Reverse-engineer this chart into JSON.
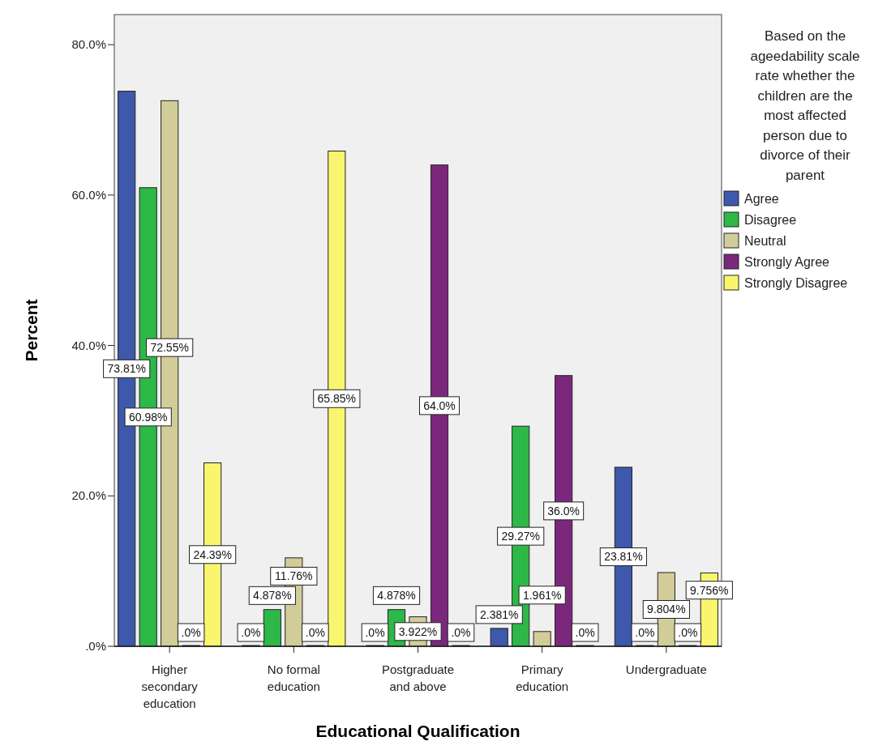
{
  "chart_data": {
    "type": "bar",
    "xlabel": "Educational Qualification",
    "ylabel": "Percent",
    "legend_title": "Based on the ageedability scale rate whether the children are the most affected person due to divorce of their parent",
    "legend": "right",
    "categories": [
      "Higher secondary education",
      "No formal education",
      "Postgraduate and above",
      "Primary education",
      "Undergraduate"
    ],
    "ylim": [
      0,
      84
    ],
    "yticks": [
      {
        "value": 0,
        "label": ".0%"
      },
      {
        "value": 20,
        "label": "20.0%"
      },
      {
        "value": 40,
        "label": "40.0%"
      },
      {
        "value": 60,
        "label": "60.0%"
      },
      {
        "value": 80,
        "label": "80.0%"
      }
    ],
    "grid": false,
    "series": [
      {
        "name": "Agree",
        "color": "#3e58ac",
        "values": [
          73.81,
          0,
          0,
          2.381,
          23.81
        ],
        "value_labels": [
          "73.81%",
          ".0%",
          ".0%",
          "2.381%",
          "23.81%"
        ]
      },
      {
        "name": "Disagree",
        "color": "#2eb848",
        "values": [
          60.98,
          4.878,
          4.878,
          29.27,
          0
        ],
        "value_labels": [
          "60.98%",
          "4.878%",
          "4.878%",
          "29.27%",
          ".0%"
        ]
      },
      {
        "name": "Neutral",
        "color": "#d2cc98",
        "values": [
          72.55,
          11.76,
          3.922,
          1.961,
          9.804
        ],
        "value_labels": [
          "72.55%",
          "11.76%",
          "3.922%",
          "1.961%",
          "9.804%"
        ]
      },
      {
        "name": "Strongly Agree",
        "color": "#7b287c",
        "values": [
          0,
          0,
          64.0,
          36.0,
          0
        ],
        "value_labels": [
          ".0%",
          ".0%",
          "64.0%",
          "36.0%",
          ".0%"
        ]
      },
      {
        "name": "Strongly Disagree",
        "color": "#f9f56e",
        "values": [
          24.39,
          65.85,
          0,
          0,
          9.756
        ],
        "value_labels": [
          "24.39%",
          "65.85%",
          ".0%",
          ".0%",
          "9.756%"
        ]
      }
    ]
  }
}
